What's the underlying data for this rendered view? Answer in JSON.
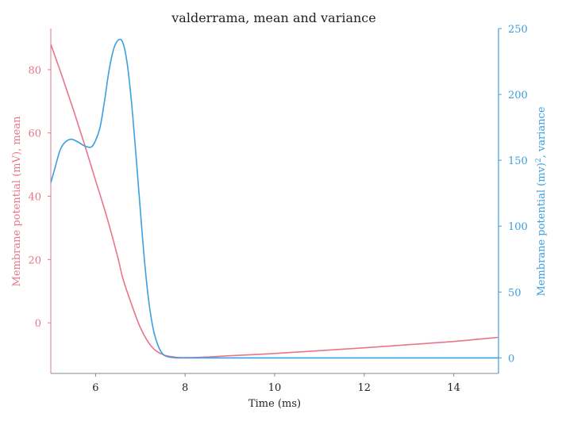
{
  "chart_data": {
    "type": "line",
    "title": "valderrama, mean and variance",
    "xlabel": "Time (ms)",
    "y1label": "Membrane potential (mV), mean",
    "y2label_prefix": "Membrane potential (mv)",
    "y2label_sup": "2",
    "y2label_suffix": ", variance",
    "xlim": [
      5,
      15
    ],
    "y1lim": [
      -16,
      93
    ],
    "y2lim": [
      -11.8,
      250
    ],
    "xticks": [
      6,
      8,
      10,
      12,
      14
    ],
    "y1ticks": [
      0,
      20,
      40,
      60,
      80
    ],
    "y2ticks": [
      0,
      50,
      100,
      150,
      200,
      250
    ],
    "colors": {
      "mean": "#e8758a",
      "variance": "#3b9fe0",
      "xaxis": "#888888"
    },
    "grid": false,
    "series": [
      {
        "axis": "left",
        "color_key": "mean",
        "x": [
          5.0,
          5.25,
          5.5,
          5.75,
          6.0,
          6.25,
          6.5,
          6.6,
          6.75,
          7.0,
          7.25,
          7.5,
          7.75,
          8.0,
          8.5,
          9.0,
          10.0,
          11.0,
          12.0,
          13.0,
          14.0,
          15.0
        ],
        "y": [
          88,
          78,
          67.5,
          56.5,
          45,
          33.5,
          20.5,
          14.5,
          8,
          -1.5,
          -7.5,
          -10,
          -10.8,
          -11,
          -10.8,
          -10.4,
          -9.7,
          -8.8,
          -7.9,
          -6.9,
          -5.9,
          -4.6
        ]
      },
      {
        "axis": "right",
        "color_key": "variance",
        "x": [
          5.0,
          5.1,
          5.2,
          5.3,
          5.45,
          5.6,
          5.75,
          5.9,
          6.0,
          6.1,
          6.2,
          6.3,
          6.4,
          6.5,
          6.6,
          6.7,
          6.8,
          6.9,
          7.0,
          7.1,
          7.2,
          7.3,
          7.4,
          7.5,
          7.6,
          7.8,
          8.0,
          9.0,
          10.0,
          12.0,
          15.0
        ],
        "y": [
          133,
          145,
          157,
          163,
          166,
          164,
          161,
          160,
          165,
          175,
          195,
          218,
          234,
          241,
          240,
          225,
          195,
          155,
          112,
          71,
          40,
          20,
          9,
          3,
          1,
          0,
          0,
          0,
          0,
          0,
          0
        ]
      }
    ]
  }
}
